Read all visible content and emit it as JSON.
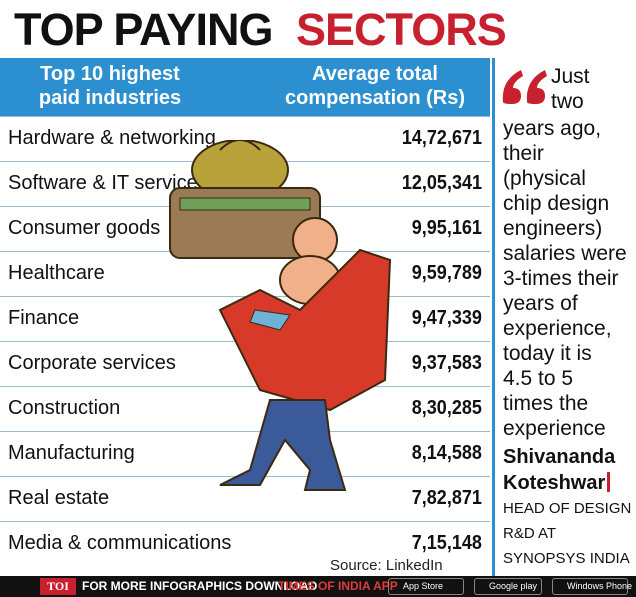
{
  "title": {
    "part1": "TOP PAYING",
    "part2": "SECTORS"
  },
  "colors": {
    "accent_red": "#c8202e",
    "header_blue": "#2c8fd0"
  },
  "chart_data": {
    "type": "table",
    "columns": [
      "Top 10 highest paid industries",
      "Average total compensation (Rs)"
    ],
    "rows": [
      {
        "industry": "Hardware & networking",
        "value": "14,72,671"
      },
      {
        "industry": "Software & IT services",
        "value": "12,05,341"
      },
      {
        "industry": "Consumer goods",
        "value": "9,95,161"
      },
      {
        "industry": "Healthcare",
        "value": "9,59,789"
      },
      {
        "industry": "Finance",
        "value": "9,47,339"
      },
      {
        "industry": "Corporate services",
        "value": "9,37,583"
      },
      {
        "industry": "Construction",
        "value": "8,30,285"
      },
      {
        "industry": "Manufacturing",
        "value": "8,14,588"
      },
      {
        "industry": "Real estate",
        "value": "7,82,871"
      },
      {
        "industry": "Media & communications",
        "value": "7,15,148"
      }
    ]
  },
  "header": {
    "col1_line1": "Top 10 highest",
    "col1_line2": "paid industries",
    "col2_line1": "Average total",
    "col2_line2": "compensation (Rs)"
  },
  "source": "Source: LinkedIn",
  "quote": {
    "lines": [
      "Just",
      "two",
      "years ago,",
      "their",
      "(physical",
      "chip design",
      "engineers)",
      "salaries were",
      "3-times their",
      "years of",
      "experience,",
      "today it is",
      "4.5 to 5",
      "times the",
      "experience"
    ],
    "author_first": "Shivananda",
    "author_last": "Koteshwar",
    "role_lines": [
      "HEAD OF DESIGN",
      "R&D AT",
      "SYNOPSYS INDIA"
    ]
  },
  "footer": {
    "logo": "TOI",
    "text": "FOR MORE INFOGRAPHICS DOWNLOAD",
    "app": "TIMES OF INDIA APP",
    "stores": [
      "App Store",
      "Google play",
      "Windows Phone"
    ]
  }
}
